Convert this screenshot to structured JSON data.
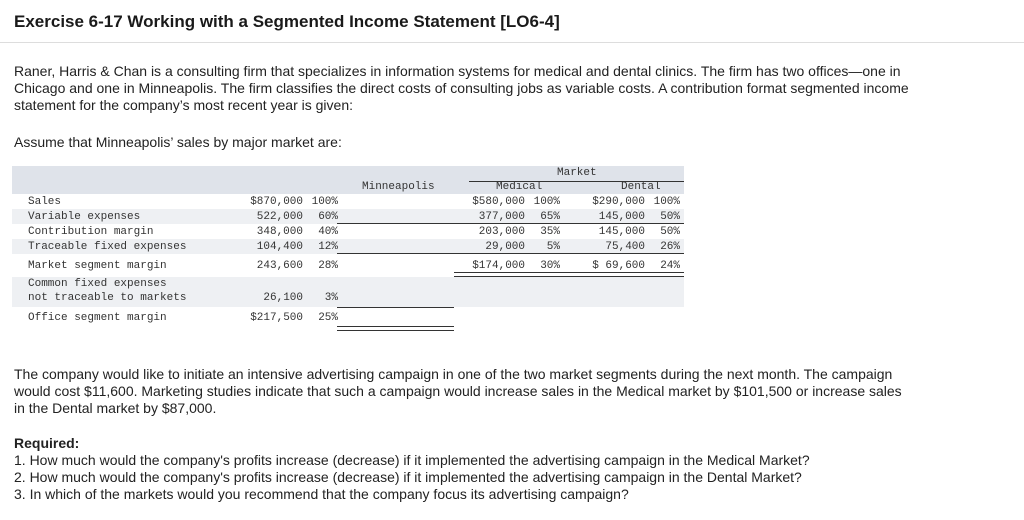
{
  "title": "Exercise 6-17 Working with a Segmented Income Statement [LO6-4]",
  "intro": "Raner, Harris & Chan is a consulting firm that specializes in information systems for medical and dental clinics. The firm has two offices—one in Chicago and one in Minneapolis. The firm classifies the direct costs of consulting jobs as variable costs. A contribution format segmented income statement for the company’s most recent year is given:",
  "assume": "Assume that Minneapolis’ sales by major market are:",
  "table": {
    "market_header": "Market",
    "col_headers": [
      "Minneapolis",
      "Medical",
      "Dental"
    ],
    "rows": [
      {
        "label": "Sales",
        "values": [
          "$870,000",
          "100%",
          "$580,000",
          "100%",
          "$290,000",
          "100%"
        ]
      },
      {
        "label": "Variable expenses",
        "values": [
          "522,000",
          "60%",
          "377,000",
          "65%",
          "145,000",
          "50%"
        ]
      },
      {
        "label": "Contribution margin",
        "values": [
          "348,000",
          "40%",
          "203,000",
          "35%",
          "145,000",
          "50%"
        ]
      },
      {
        "label": "Traceable fixed expenses",
        "values": [
          "104,400",
          "12%",
          "29,000",
          "5%",
          "75,400",
          "26%"
        ]
      },
      {
        "label": "Market segment margin",
        "values": [
          "243,600",
          "28%",
          "$174,000",
          "30%",
          "$ 69,600",
          "24%"
        ]
      },
      {
        "label": "Common fixed expenses",
        "label2": "not traceable to markets",
        "values": [
          "26,100",
          "3%"
        ]
      },
      {
        "label": "Office segment margin",
        "values": [
          "$217,500",
          "25%"
        ]
      }
    ]
  },
  "campaign": "The company would like to initiate an intensive advertising campaign in one of the two market segments during the next month. The campaign would cost $11,600. Marketing studies indicate that such a campaign would increase sales in the Medical market by $101,500 or increase sales in the Dental market by $87,000.",
  "required_label": "Required:",
  "questions": [
    "1. How much would the company's profits increase (decrease) if it implemented the advertising campaign in the Medical Market?",
    "2. How much would the company's profits increase (decrease) if it implemented the advertising campaign in the Dental Market?",
    "3. In which of the markets would you recommend that the company focus its advertising campaign?"
  ]
}
